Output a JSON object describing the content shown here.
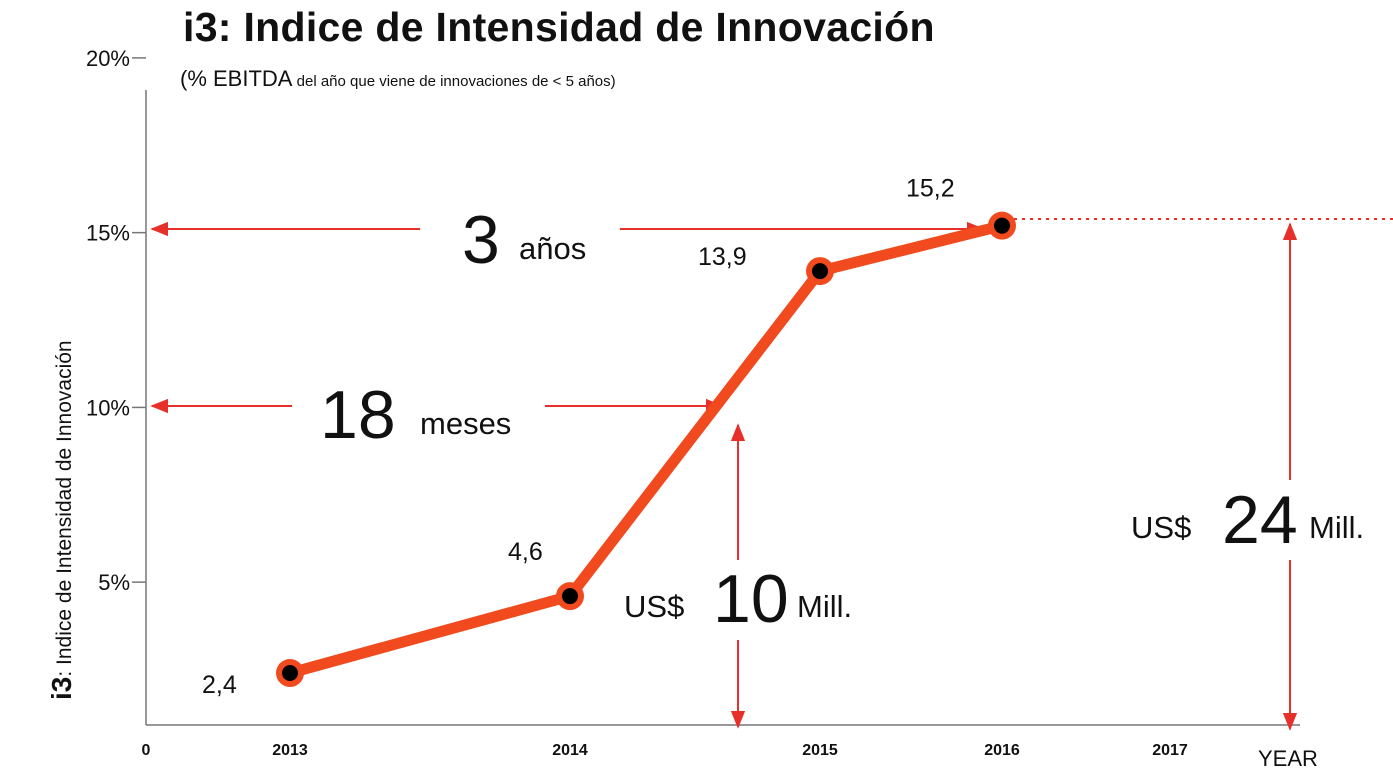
{
  "chart_data": {
    "type": "line",
    "title": "i3: Indice de Intensidad de Innovación",
    "subtitle": {
      "part1": "(% EBITDA",
      "part2": " del año que viene de innovaciones de < 5 años)"
    },
    "ylabel": {
      "prefix": "i3",
      "text": ": Indice de Intensidad de Innovación"
    },
    "xlabel": "YEAR",
    "x_ticks": [
      "0",
      "2013",
      "2014",
      "2015",
      "2016",
      "2017"
    ],
    "y_ticks": [
      "5%",
      "10%",
      "15%",
      "20%"
    ],
    "y_tick_values": [
      5,
      10,
      15,
      20
    ],
    "ylim": [
      1.0,
      20
    ],
    "series": [
      {
        "x": [
          2013,
          2014,
          2015,
          2016
        ],
        "y": [
          2.4,
          4.6,
          13.9,
          15.2
        ],
        "labels": [
          "2,4",
          "4,6",
          "13,9",
          "15,2"
        ],
        "label_unit": "%",
        "color": "#f04a1e"
      }
    ],
    "annotations": {
      "years_big": "3",
      "years_small": "años",
      "months_big": "18",
      "months_small": "meses",
      "mid_value_currency": "US$",
      "mid_value_big": "10",
      "mid_value_unit": "Mill.",
      "total_value_currency": "US$",
      "total_value_big": "24",
      "total_value_unit": "Mill."
    },
    "arrow_color": "#e8302a",
    "grid": false
  }
}
